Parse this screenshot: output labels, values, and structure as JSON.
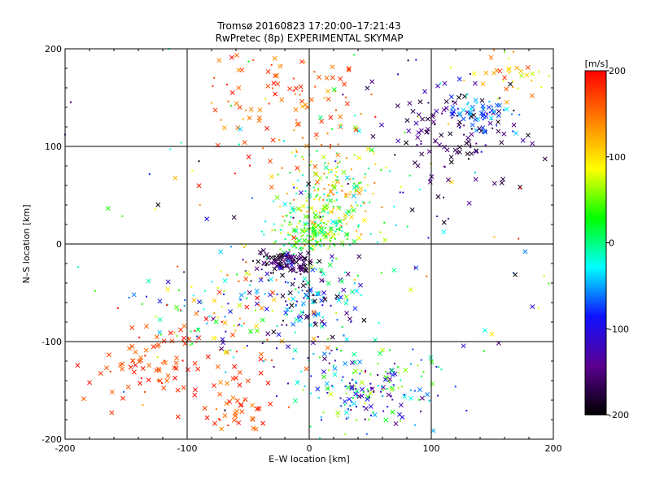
{
  "chart_data": {
    "type": "scatter",
    "title_line1": "Tromsø 20160823 17:20:00–17:21:43",
    "title_line2": "RwPretec (8p) EXPERIMENTAL SKYMAP",
    "xlabel": "E–W location [km]",
    "ylabel": "N–S location [km]",
    "xlim": [
      -200,
      200
    ],
    "ylim": [
      -200,
      200
    ],
    "grid": true,
    "grid_lines": [
      -100,
      0,
      100
    ],
    "x_ticks": [
      "-200",
      "-100",
      "0",
      "100",
      "200"
    ],
    "y_ticks": [
      "-200",
      "-100",
      "0",
      "100",
      "200"
    ],
    "colorbar": {
      "unit_label": "[m/s]",
      "range": [
        -200,
        200
      ],
      "ticks": [
        "200",
        "100",
        "0",
        "-100",
        "-200"
      ],
      "stops": [
        "#000000",
        "#5a0090",
        "#1010ff",
        "#00ffff",
        "#00ff00",
        "#ffff00",
        "#ff8000",
        "#ff0000"
      ]
    },
    "markers": [
      "x",
      "dot"
    ],
    "clusters": [
      {
        "name": "red-northwest",
        "cx": -20,
        "cy": 150,
        "sx": 35,
        "sy": 35,
        "n": 110,
        "vmin": 120,
        "vmax": 200,
        "xfrac": 0.6
      },
      {
        "name": "central-mixed",
        "cx": 20,
        "cy": 50,
        "sx": 22,
        "sy": 30,
        "n": 230,
        "vmin": -40,
        "vmax": 160,
        "xfrac": 0.25
      },
      {
        "name": "center-green",
        "cx": 5,
        "cy": 10,
        "sx": 15,
        "sy": 12,
        "n": 150,
        "vmin": -20,
        "vmax": 80,
        "xfrac": 0.3
      },
      {
        "name": "center-dark",
        "cx": -20,
        "cy": -20,
        "sx": 12,
        "sy": 6,
        "n": 90,
        "vmin": -200,
        "vmax": -140,
        "xfrac": 0.7
      },
      {
        "name": "center-south-mixed",
        "cx": 0,
        "cy": -60,
        "sx": 25,
        "sy": 22,
        "n": 150,
        "vmin": -200,
        "vmax": 20,
        "xfrac": 0.5
      },
      {
        "name": "southwest-red",
        "cx": -130,
        "cy": -120,
        "sx": 25,
        "sy": 18,
        "n": 75,
        "vmin": 150,
        "vmax": 200,
        "xfrac": 0.85
      },
      {
        "name": "south-west-red-2",
        "cx": -60,
        "cy": -165,
        "sx": 18,
        "sy": 20,
        "n": 55,
        "vmin": 140,
        "vmax": 200,
        "xfrac": 0.8
      },
      {
        "name": "south-cluster",
        "cx": 45,
        "cy": -150,
        "sx": 30,
        "sy": 20,
        "n": 190,
        "vmin": -150,
        "vmax": 80,
        "xfrac": 0.3
      },
      {
        "name": "northeast-dark",
        "cx": 120,
        "cy": 115,
        "sx": 28,
        "sy": 28,
        "n": 120,
        "vmin": -200,
        "vmax": -120,
        "xfrac": 0.75
      },
      {
        "name": "northeast-cyan",
        "cx": 140,
        "cy": 135,
        "sx": 15,
        "sy": 12,
        "n": 60,
        "vmin": -90,
        "vmax": -30,
        "xfrac": 0.5
      },
      {
        "name": "northeast-warm",
        "cx": 170,
        "cy": 180,
        "sx": 20,
        "sy": 15,
        "n": 40,
        "vmin": 60,
        "vmax": 180,
        "xfrac": 0.7
      },
      {
        "name": "west-middle-mixed",
        "cx": -70,
        "cy": -70,
        "sx": 35,
        "sy": 25,
        "n": 120,
        "vmin": -120,
        "vmax": 200,
        "xfrac": 0.4
      },
      {
        "name": "scattered-background",
        "cx": 0,
        "cy": 0,
        "sx": 110,
        "sy": 110,
        "n": 160,
        "vmin": -200,
        "vmax": 200,
        "xfrac": 0.3
      }
    ]
  }
}
